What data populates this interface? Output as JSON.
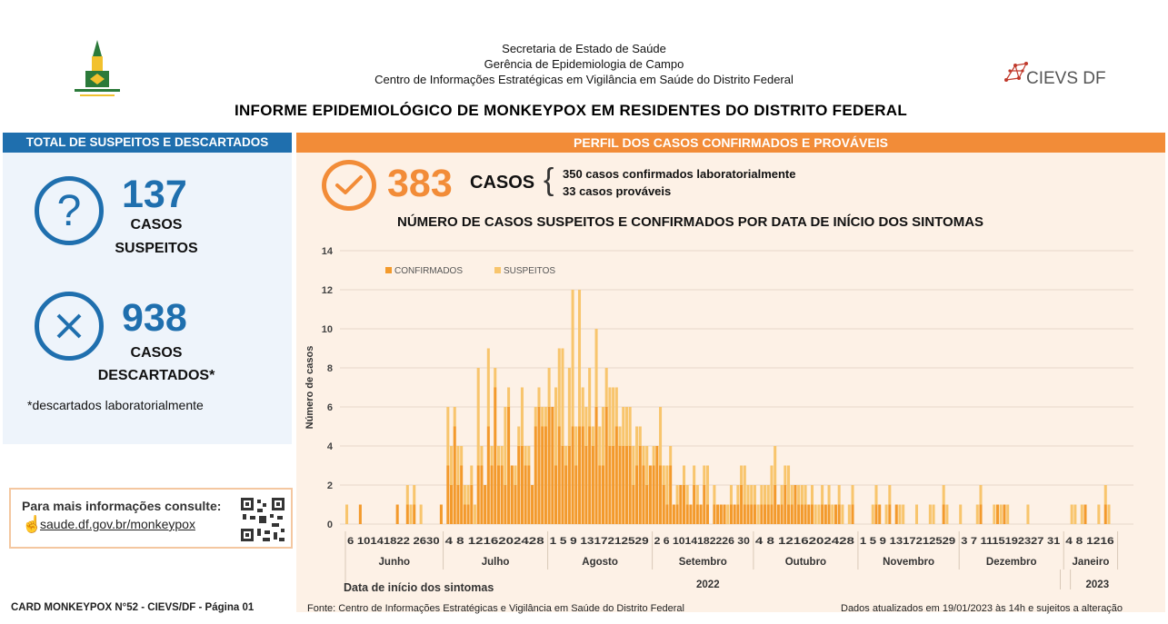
{
  "header": {
    "line1": "Secretaria de Estado de Saúde",
    "line2": "Gerência de Epidemiologia de Campo",
    "line3": "Centro de Informações Estratégicas em Vigilância em Saúde do Distrito Federal",
    "title": "INFORME EPIDEMIOLÓGICO DE MONKEYPOX EM RESIDENTES DO DISTRITO FEDERAL",
    "logo_right": "CIEVS DF"
  },
  "left": {
    "heading": "TOTAL DE SUSPEITOS E DESCARTADOS",
    "suspects_num": "137",
    "suspects_l1": "CASOS",
    "suspects_l2": "SUSPEITOS",
    "discarded_num": "938",
    "discarded_l1": "CASOS",
    "discarded_l2": "DESCARTADOS*",
    "footnote": "*descartados laboratorialmente",
    "info_label": "Para mais informações consulte:",
    "info_link": "saude.df.gov.br/monkeypox"
  },
  "right": {
    "heading": "PERFIL DOS CASOS CONFIRMADOS E PROVÁVEIS",
    "total": "383",
    "total_label": "CASOS",
    "detail1": "350 casos confirmados laboratorialmente",
    "detail2": "33 casos prováveis"
  },
  "chart_data": {
    "type": "bar",
    "stacked": true,
    "title": "NÚMERO DE CASOS SUSPEITOS E CONFIRMADOS POR DATA DE INÍCIO DOS SINTOMAS",
    "ylabel": "Número de casos",
    "xlabel": "Data de início dos sintomas",
    "ylim": [
      0,
      14
    ],
    "yticks": [
      0,
      2,
      4,
      6,
      8,
      10,
      12,
      14
    ],
    "legend": [
      "CONFIRMADOS",
      "SUSPEITOS"
    ],
    "legend_position": "top-left",
    "colors": {
      "confirmados": "#f39a2c",
      "suspeitos": "#f8c56d"
    },
    "months": [
      {
        "name": "Junho",
        "ticks": "6 10141822 2630",
        "days": 29
      },
      {
        "name": "Julho",
        "ticks": "4  8 1216202428",
        "days": 31
      },
      {
        "name": "Agosto",
        "ticks": "1  5  9 1317212529",
        "days": 31
      },
      {
        "name": "Setembro",
        "ticks": "2  6 1014182226 30",
        "days": 30
      },
      {
        "name": "Outubro",
        "ticks": "4  8 1216202428",
        "days": 31
      },
      {
        "name": "Novembro",
        "ticks": "1  5  9 1317212529",
        "days": 30
      },
      {
        "name": "Dezembro",
        "ticks": "3  7 1115192327 31",
        "days": 31
      },
      {
        "name": "Janeiro",
        "ticks": "4  8 1216",
        "days": 16
      }
    ],
    "year_labels": [
      "2022",
      "2023"
    ],
    "confirmados": [
      0,
      0,
      0,
      0,
      1,
      0,
      0,
      0,
      0,
      0,
      0,
      0,
      0,
      0,
      0,
      1,
      0,
      0,
      1,
      0,
      1,
      0,
      0,
      0,
      0,
      0,
      0,
      0,
      1,
      0,
      3,
      2,
      5,
      2,
      3,
      1,
      1,
      2,
      0,
      3,
      3,
      2,
      5,
      3,
      7,
      3,
      3,
      2,
      6,
      3,
      2,
      4,
      4,
      3,
      3,
      2,
      5,
      6,
      5,
      5,
      6,
      6,
      3,
      5,
      4,
      3,
      4,
      5,
      3,
      5,
      5,
      4,
      5,
      4,
      6,
      3,
      3,
      6,
      4,
      4,
      5,
      4,
      4,
      4,
      4,
      2,
      3,
      4,
      3,
      2,
      3,
      3,
      4,
      3,
      2,
      1,
      3,
      1,
      1,
      2,
      2,
      1,
      1,
      2,
      1,
      1,
      2,
      1,
      0,
      1,
      1,
      1,
      1,
      0,
      1,
      1,
      1,
      2,
      1,
      1,
      1,
      1,
      0,
      1,
      1,
      1,
      1,
      2,
      1,
      1,
      2,
      1,
      1,
      2,
      1,
      1,
      1,
      1,
      1,
      0,
      0,
      1,
      1,
      1,
      0,
      1,
      1,
      0,
      0,
      0,
      1,
      0,
      0,
      0,
      0,
      0,
      0,
      1,
      1,
      0,
      0,
      1,
      0,
      1,
      0,
      0,
      0,
      0,
      0,
      0,
      0,
      0,
      0,
      0,
      0,
      0,
      0,
      1,
      0,
      0,
      0,
      0,
      0,
      0,
      0,
      0,
      0,
      0,
      1,
      0,
      0,
      0,
      0,
      1,
      0,
      1,
      0,
      0,
      0,
      0,
      0,
      0,
      0,
      0,
      0,
      0,
      0,
      0,
      0,
      0,
      0,
      0,
      0,
      0,
      0,
      0,
      0,
      0,
      0,
      1,
      0,
      0,
      0,
      0,
      0,
      1,
      0,
      0,
      0,
      0,
      0
    ],
    "suspeitos": [
      1,
      0,
      0,
      0,
      0,
      0,
      0,
      0,
      0,
      0,
      0,
      0,
      0,
      0,
      0,
      0,
      0,
      0,
      1,
      1,
      1,
      0,
      1,
      0,
      0,
      0,
      0,
      0,
      0,
      0,
      3,
      2,
      1,
      2,
      1,
      1,
      1,
      1,
      1,
      5,
      1,
      0,
      4,
      1,
      1,
      1,
      1,
      4,
      1,
      0,
      1,
      1,
      3,
      1,
      1,
      0,
      1,
      1,
      1,
      1,
      2,
      0,
      4,
      4,
      5,
      1,
      4,
      7,
      2,
      7,
      2,
      2,
      3,
      1,
      4,
      2,
      3,
      2,
      3,
      3,
      2,
      1,
      2,
      2,
      2,
      2,
      2,
      1,
      1,
      2,
      0,
      1,
      0,
      3,
      1,
      2,
      1,
      0,
      1,
      0,
      1,
      1,
      0,
      1,
      1,
      0,
      1,
      2,
      0,
      1,
      0,
      0,
      0,
      1,
      1,
      0,
      1,
      1,
      2,
      1,
      1,
      1,
      1,
      1,
      1,
      1,
      2,
      2,
      0,
      1,
      1,
      2,
      1,
      0,
      1,
      1,
      1,
      0,
      1,
      1,
      1,
      1,
      0,
      1,
      1,
      0,
      1,
      1,
      0,
      1,
      1,
      0,
      0,
      0,
      0,
      0,
      1,
      1,
      0,
      0,
      1,
      1,
      0,
      0,
      1,
      1,
      0,
      0,
      0,
      1,
      0,
      0,
      0,
      1,
      1,
      0,
      0,
      1,
      1,
      0,
      0,
      0,
      1,
      0,
      0,
      0,
      0,
      1,
      1,
      0,
      0,
      0,
      1,
      0,
      1,
      0,
      1,
      0,
      0,
      0,
      0,
      0,
      1,
      0,
      0,
      0,
      0,
      0,
      0,
      0,
      0,
      0,
      0,
      0,
      0,
      1,
      1,
      0,
      1,
      0,
      0,
      0,
      0,
      1,
      0,
      1,
      1,
      0,
      0,
      0,
      0
    ]
  },
  "footer": {
    "left": "CARD MONKEYPOX N°52 - CIEVS/DF - Página 01",
    "center": "Fonte: Centro de Informações Estratégicas e Vigilância em Saúde do Distrito Federal",
    "right": "Dados atualizados em 19/01/2023 às 14h e sujeitos a alteração"
  }
}
